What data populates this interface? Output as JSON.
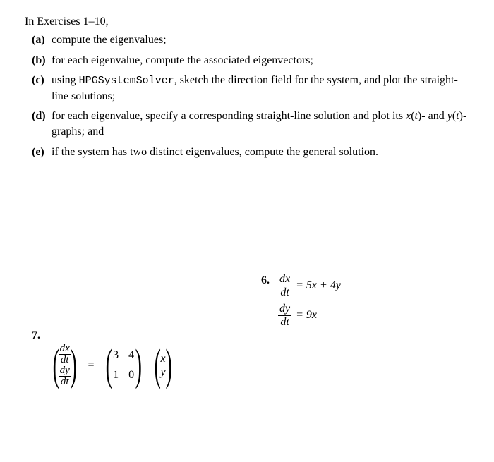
{
  "header": "In Exercises 1–10,",
  "instructions": [
    {
      "label": "(a)",
      "text": "compute the eigenvalues;"
    },
    {
      "label": "(b)",
      "text": "for each eigenvalue, compute the associated eigenvectors;"
    },
    {
      "label": "(c)",
      "pre": "using ",
      "mono": "HPGSystemSolver",
      "post": ", sketch the direction field for the system, and plot the straight-line solutions;"
    },
    {
      "label": "(d)",
      "text_html": "for each eigenvalue, specify a corresponding straight-line solution and plot its x(t)- and y(t)-graphs; and"
    },
    {
      "label": "(e)",
      "text": "if the system has two distinct eigenvalues, compute the general solution."
    }
  ],
  "problem6": {
    "number": "6.",
    "eq1": {
      "frac_num": "dx",
      "frac_den": "dt",
      "rhs": "= 5x + 4y"
    },
    "eq2": {
      "frac_num": "dy",
      "frac_den": "dt",
      "rhs": "= 9x"
    }
  },
  "problem7": {
    "number": "7.",
    "lhs_top_num": "dx",
    "lhs_top_den": "dt",
    "lhs_bot_num": "dy",
    "lhs_bot_den": "dt",
    "equals": "=",
    "matrix": [
      "3",
      "4",
      "1",
      "0"
    ],
    "vec": [
      "x",
      "y"
    ]
  },
  "style": {
    "text_color": "#000000",
    "background": "#ffffff",
    "body_fontsize": 16,
    "mono_fontsize": 15
  }
}
